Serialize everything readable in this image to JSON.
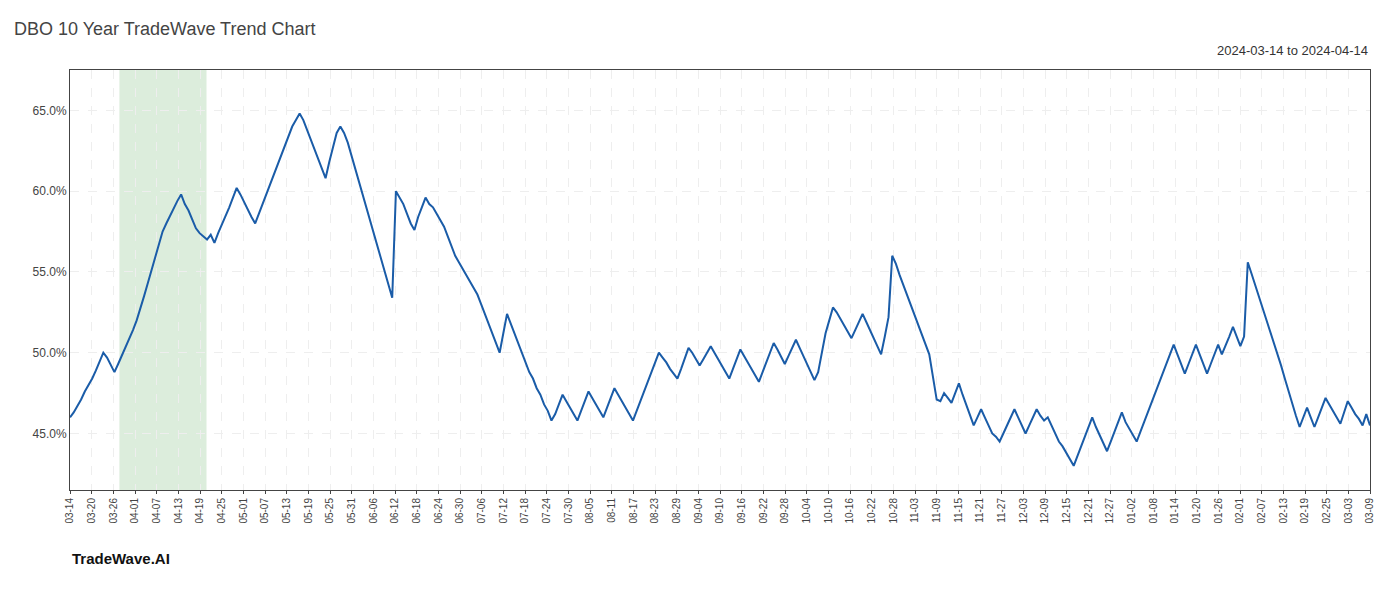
{
  "chart_data": {
    "type": "line",
    "title": "DBO 10 Year TradeWave Trend Chart",
    "subtitle": "2024-03-14 to 2024-04-14",
    "annotations": [
      "TradeWave.AI"
    ],
    "color": "#1a5ca8",
    "grid": true,
    "span": {
      "x": [
        13.338,
        36.855
      ],
      "color": "#d6ead6"
    },
    "xlim": [
      0,
      351
    ],
    "xticks": [
      {
        "value": 0,
        "label": "03-14"
      },
      {
        "value": 5.85,
        "label": "03-20"
      },
      {
        "value": 11.7,
        "label": "03-26"
      },
      {
        "value": 17.55,
        "label": "04-01"
      },
      {
        "value": 23.4,
        "label": "04-07"
      },
      {
        "value": 29.25,
        "label": "04-13"
      },
      {
        "value": 35.1,
        "label": "04-19"
      },
      {
        "value": 40.95,
        "label": "04-25"
      },
      {
        "value": 46.8,
        "label": "05-01"
      },
      {
        "value": 52.65,
        "label": "05-07"
      },
      {
        "value": 58.5,
        "label": "05-13"
      },
      {
        "value": 64.35,
        "label": "05-19"
      },
      {
        "value": 70.2,
        "label": "05-25"
      },
      {
        "value": 76.05,
        "label": "05-31"
      },
      {
        "value": 81.9,
        "label": "06-06"
      },
      {
        "value": 87.75,
        "label": "06-12"
      },
      {
        "value": 93.6,
        "label": "06-18"
      },
      {
        "value": 99.45,
        "label": "06-24"
      },
      {
        "value": 105.3,
        "label": "06-30"
      },
      {
        "value": 111.15,
        "label": "07-06"
      },
      {
        "value": 117,
        "label": "07-12"
      },
      {
        "value": 122.85,
        "label": "07-18"
      },
      {
        "value": 128.7,
        "label": "07-24"
      },
      {
        "value": 134.55,
        "label": "07-30"
      },
      {
        "value": 140.4,
        "label": "08-05"
      },
      {
        "value": 146.25,
        "label": "08-11"
      },
      {
        "value": 152.1,
        "label": "08-17"
      },
      {
        "value": 157.95,
        "label": "08-23"
      },
      {
        "value": 163.8,
        "label": "08-29"
      },
      {
        "value": 169.65,
        "label": "09-04"
      },
      {
        "value": 175.5,
        "label": "09-10"
      },
      {
        "value": 181.35,
        "label": "09-16"
      },
      {
        "value": 187.2,
        "label": "09-22"
      },
      {
        "value": 193.05,
        "label": "09-28"
      },
      {
        "value": 198.9,
        "label": "10-04"
      },
      {
        "value": 204.75,
        "label": "10-10"
      },
      {
        "value": 210.6,
        "label": "10-16"
      },
      {
        "value": 216.45,
        "label": "10-22"
      },
      {
        "value": 222.3,
        "label": "10-28"
      },
      {
        "value": 228.15,
        "label": "11-03"
      },
      {
        "value": 234,
        "label": "11-09"
      },
      {
        "value": 239.85,
        "label": "11-15"
      },
      {
        "value": 245.7,
        "label": "11-21"
      },
      {
        "value": 251.55,
        "label": "11-27"
      },
      {
        "value": 257.4,
        "label": "12-03"
      },
      {
        "value": 263.25,
        "label": "12-09"
      },
      {
        "value": 269.1,
        "label": "12-15"
      },
      {
        "value": 274.95,
        "label": "12-21"
      },
      {
        "value": 280.8,
        "label": "12-27"
      },
      {
        "value": 286.65,
        "label": "01-02"
      },
      {
        "value": 292.5,
        "label": "01-08"
      },
      {
        "value": 298.35,
        "label": "01-14"
      },
      {
        "value": 304.2,
        "label": "01-20"
      },
      {
        "value": 310.05,
        "label": "01-26"
      },
      {
        "value": 315.9,
        "label": "02-01"
      },
      {
        "value": 321.75,
        "label": "02-07"
      },
      {
        "value": 327.6,
        "label": "02-13"
      },
      {
        "value": 333.45,
        "label": "02-19"
      },
      {
        "value": 339.3,
        "label": "02-25"
      },
      {
        "value": 345.15,
        "label": "03-03"
      },
      {
        "value": 351,
        "label": "03-09"
      }
    ],
    "ylim": [
      0.415,
      0.675
    ],
    "yticks": [
      {
        "value": 0.45,
        "label": "45.0%"
      },
      {
        "value": 0.5,
        "label": "50.0%"
      },
      {
        "value": 0.55,
        "label": "55.0%"
      },
      {
        "value": 0.6,
        "label": "60.0%"
      },
      {
        "value": 0.65,
        "label": "65.0%"
      }
    ],
    "values": [
      0.46,
      0.463,
      0.467,
      0.471,
      0.476,
      0.48,
      0.484,
      0.489,
      0.494,
      0.5,
      0.497,
      0.492,
      0.488,
      0.493,
      0.498,
      0.503,
      0.508,
      0.514,
      0.52,
      0.527,
      0.535,
      0.543,
      0.551,
      0.559,
      0.567,
      0.575,
      0.58,
      0.585,
      0.59,
      0.594,
      0.598,
      0.592,
      0.588,
      0.582,
      0.577,
      0.574,
      0.572,
      0.57,
      0.573,
      0.568,
      0.574,
      0.579,
      0.584,
      0.59,
      0.596,
      0.602,
      0.598,
      0.593,
      0.588,
      0.584,
      0.58,
      0.586,
      0.592,
      0.598,
      0.604,
      0.61,
      0.616,
      0.622,
      0.628,
      0.634,
      0.64,
      0.644,
      0.648,
      0.644,
      0.638,
      0.632,
      0.626,
      0.62,
      0.614,
      0.608,
      0.618,
      0.628,
      0.636,
      0.64,
      0.636,
      0.63,
      0.622,
      0.614,
      0.606,
      0.598,
      0.59,
      0.582,
      0.574,
      0.566,
      0.558,
      0.55,
      0.542,
      0.534,
      0.6,
      0.596,
      0.592,
      0.586,
      0.58,
      0.576,
      0.584,
      0.59,
      0.596,
      0.592,
      0.59,
      0.586,
      0.582,
      0.578,
      0.572,
      0.566,
      0.56,
      0.556,
      0.552,
      0.548,
      0.544,
      0.54,
      0.536,
      0.53,
      0.524,
      0.518,
      0.512,
      0.506,
      0.5,
      0.512,
      0.524,
      0.518,
      0.512,
      0.506,
      0.5,
      0.494,
      0.488,
      0.484,
      0.478,
      0.474,
      0.468,
      0.464,
      0.458,
      0.462,
      0.468,
      0.474,
      0.47,
      0.466,
      0.462,
      0.458,
      0.464,
      0.47,
      0.476,
      0.472,
      0.468,
      0.464,
      0.46,
      0.466,
      0.472,
      0.478,
      0.474,
      0.47,
      0.466,
      0.462,
      0.458,
      0.464,
      0.47,
      0.476,
      0.482,
      0.488,
      0.494,
      0.5,
      0.497,
      0.494,
      0.49,
      0.487,
      0.484,
      0.49,
      0.497,
      0.503,
      0.5,
      0.496,
      0.492,
      0.496,
      0.5,
      0.504,
      0.5,
      0.496,
      0.492,
      0.488,
      0.484,
      0.49,
      0.496,
      0.502,
      0.498,
      0.494,
      0.49,
      0.486,
      0.482,
      0.488,
      0.494,
      0.5,
      0.506,
      0.502,
      0.497,
      0.493,
      0.498,
      0.503,
      0.508,
      0.503,
      0.498,
      0.493,
      0.488,
      0.483,
      0.488,
      0.5,
      0.512,
      0.52,
      0.528,
      0.525,
      0.521,
      0.517,
      0.513,
      0.509,
      0.514,
      0.519,
      0.524,
      0.519,
      0.514,
      0.509,
      0.504,
      0.499,
      0.51,
      0.522,
      0.56,
      0.555,
      0.548,
      0.542,
      0.535,
      0.529,
      0.523,
      0.517,
      0.511,
      0.505,
      0.499,
      0.485,
      0.471,
      0.47,
      0.475,
      0.472,
      0.469,
      0.475,
      0.481,
      0.474,
      0.468,
      0.462,
      0.455,
      0.46,
      0.465,
      0.46,
      0.455,
      0.45,
      0.448,
      0.445,
      0.45,
      0.455,
      0.46,
      0.465,
      0.46,
      0.455,
      0.45,
      0.455,
      0.46,
      0.465,
      0.461,
      0.458,
      0.46,
      0.455,
      0.45,
      0.445,
      0.442,
      0.438,
      0.434,
      0.43,
      0.436,
      0.442,
      0.448,
      0.454,
      0.46,
      0.454,
      0.449,
      0.444,
      0.439,
      0.445,
      0.451,
      0.457,
      0.463,
      0.457,
      0.453,
      0.449,
      0.445,
      0.451,
      0.457,
      0.463,
      0.469,
      0.475,
      0.481,
      0.487,
      0.493,
      0.499,
      0.505,
      0.499,
      0.493,
      0.487,
      0.493,
      0.499,
      0.505,
      0.499,
      0.493,
      0.487,
      0.493,
      0.499,
      0.505,
      0.499,
      0.504,
      0.51,
      0.516,
      0.51,
      0.504,
      0.51,
      0.556,
      0.549,
      0.542,
      0.535,
      0.528,
      0.521,
      0.514,
      0.507,
      0.5,
      0.492,
      0.484,
      0.476,
      0.468,
      0.461,
      0.454,
      0.46,
      0.466,
      0.46,
      0.454,
      0.46,
      0.466,
      0.472,
      0.468,
      0.464,
      0.46,
      0.456,
      0.463,
      0.47,
      0.466,
      0.462,
      0.459,
      0.455,
      0.462,
      0.455
    ]
  }
}
